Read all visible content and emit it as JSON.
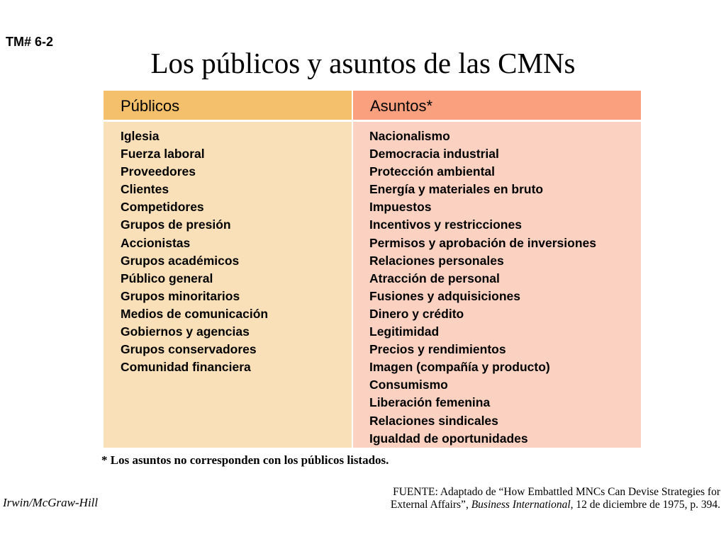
{
  "slide_tag": "TM# 6-2",
  "title": "Los públicos y  asuntos de las CMNs",
  "table": {
    "headers": {
      "publicos": "Públicos",
      "asuntos": "Asuntos*"
    },
    "colors": {
      "publicos_header": "#f4c06b",
      "publicos_body": "#fae0b8",
      "asuntos_header": "#fba07f",
      "asuntos_body": "#fbd2c2"
    },
    "publicos": [
      "Iglesia",
      "Fuerza laboral",
      "Proveedores",
      "Clientes",
      "Competidores",
      "Grupos de presión",
      "Accionistas",
      "Grupos académicos",
      "Público general",
      "Grupos minoritarios",
      "Medios de comunicación",
      "Gobiernos y agencias",
      "Grupos conservadores",
      "Comunidad financiera"
    ],
    "asuntos": [
      "Nacionalismo",
      "Democracia industrial",
      "Protección ambiental",
      "Energía y materiales en bruto",
      "Impuestos",
      "Incentivos y restricciones",
      "Permisos y aprobación de inversiones",
      "Relaciones personales",
      "Atracción de personal",
      "Fusiones y adquisiciones",
      "Dinero y crédito",
      "Legitimidad",
      "Precios y rendimientos",
      "Imagen (compañía y producto)",
      "Consumismo",
      "Liberación femenina",
      "Relaciones sindicales",
      "Igualdad de oportunidades"
    ]
  },
  "footnote": "* Los asuntos no corresponden con los públicos listados.",
  "publisher": "Irwin/McGraw-Hill",
  "source": {
    "line1": "FUENTE: Adaptado de “How Embattled MNCs Can Devise Strategies for",
    "line2_pre": "External Affairs”, ",
    "line2_italic": "Business International",
    "line2_post": ", 12 de diciembre de 1975, p. 394."
  }
}
